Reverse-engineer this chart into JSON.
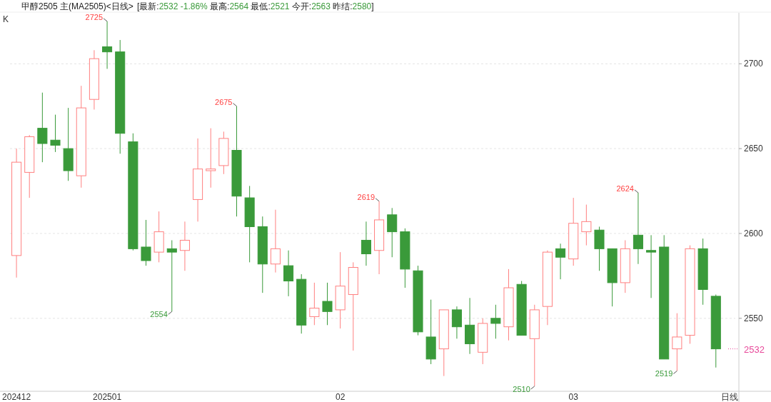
{
  "chart_data": {
    "type": "candlestick",
    "title": "甲醇2505 主(MA2505)<日线>",
    "subtitle": "[最新:2532 -1.86% 最高:2564 最低:2521 今开:2563 昨结:2580]",
    "annotations": [
      "K",
      "日线",
      "2725",
      "2675",
      "2619",
      "2624",
      "2554",
      "2510",
      "2519"
    ],
    "categories": [
      "202412",
      null,
      null,
      null,
      null,
      null,
      null,
      "202501",
      null,
      null,
      null,
      null,
      null,
      null,
      null,
      null,
      null,
      null,
      null,
      null,
      null,
      null,
      null,
      null,
      null,
      "02",
      null,
      null,
      null,
      null,
      null,
      null,
      null,
      null,
      null,
      null,
      null,
      null,
      null,
      null,
      null,
      null,
      null,
      "03",
      null,
      null,
      null,
      null,
      null,
      null,
      null,
      null,
      null,
      null,
      null
    ],
    "ohlc": [
      [
        2587,
        2650,
        2574,
        2642
      ],
      [
        2636,
        2658,
        2621,
        2657
      ],
      [
        2662,
        2683,
        2642,
        2653
      ],
      [
        2655,
        2670,
        2648,
        2652
      ],
      [
        2650,
        2674,
        2631,
        2637
      ],
      [
        2634,
        2687,
        2627,
        2674
      ],
      [
        2679,
        2708,
        2673,
        2703
      ],
      [
        2710,
        2725,
        2697,
        2707
      ],
      [
        2707,
        2714,
        2647,
        2659
      ],
      [
        2654,
        2659,
        2590,
        2591
      ],
      [
        2592,
        2608,
        2581,
        2584
      ],
      [
        2589,
        2613,
        2583,
        2601
      ],
      [
        2591,
        2596,
        2554,
        2589
      ],
      [
        2590,
        2607,
        2578,
        2596
      ],
      [
        2620,
        2656,
        2607,
        2638
      ],
      [
        2637,
        2662,
        2627,
        2638
      ],
      [
        2640,
        2660,
        2635,
        2656
      ],
      [
        2649,
        2675,
        2610,
        2622
      ],
      [
        2621,
        2628,
        2583,
        2604
      ],
      [
        2604,
        2610,
        2565,
        2582
      ],
      [
        2582,
        2614,
        2577,
        2591
      ],
      [
        2581,
        2590,
        2563,
        2572
      ],
      [
        2573,
        2576,
        2541,
        2546
      ],
      [
        2551,
        2571,
        2546,
        2556
      ],
      [
        2560,
        2571,
        2546,
        2554
      ],
      [
        2555,
        2589,
        2544,
        2569
      ],
      [
        2564,
        2583,
        2531,
        2580
      ],
      [
        2596,
        2607,
        2581,
        2588
      ],
      [
        2590,
        2619,
        2576,
        2608
      ],
      [
        2611,
        2615,
        2586,
        2601
      ],
      [
        2601,
        2603,
        2568,
        2579
      ],
      [
        2578,
        2581,
        2540,
        2542
      ],
      [
        2539,
        2561,
        2523,
        2526
      ],
      [
        2532,
        2555,
        2516,
        2555
      ],
      [
        2555,
        2557,
        2538,
        2545
      ],
      [
        2546,
        2562,
        2529,
        2535
      ],
      [
        2530,
        2550,
        2523,
        2547
      ],
      [
        2550,
        2558,
        2538,
        2547
      ],
      [
        2545,
        2579,
        2537,
        2568
      ],
      [
        2570,
        2572,
        2540,
        2540
      ],
      [
        2538,
        2558,
        2510,
        2555
      ],
      [
        2557,
        2590,
        2546,
        2589
      ],
      [
        2591,
        2594,
        2573,
        2586
      ],
      [
        2585,
        2621,
        2581,
        2606
      ],
      [
        2601,
        2617,
        2593,
        2607
      ],
      [
        2602,
        2604,
        2578,
        2591
      ],
      [
        2591,
        2591,
        2557,
        2571
      ],
      [
        2571,
        2596,
        2565,
        2591
      ],
      [
        2599,
        2624,
        2582,
        2591
      ],
      [
        2590,
        2599,
        2562,
        2589
      ],
      [
        2592,
        2599,
        2526,
        2526
      ],
      [
        2532,
        2553,
        2519,
        2539
      ],
      [
        2540,
        2593,
        2535,
        2591
      ],
      [
        2591,
        2597,
        2558,
        2567
      ],
      [
        2563,
        2564,
        2521,
        2532
      ]
    ],
    "colors": [
      "#ff8080",
      "#ff8080",
      "#3a9a3a",
      "#3a9a3a",
      "#3a9a3a",
      "#ff8080",
      "#ff8080",
      "#3a9a3a",
      "#3a9a3a",
      "#3a9a3a",
      "#3a9a3a",
      "#ff8080",
      "#3a9a3a",
      "#ff8080",
      "#ff8080",
      "#ff8080",
      "#ff8080",
      "#3a9a3a",
      "#3a9a3a",
      "#3a9a3a",
      "#ff8080",
      "#3a9a3a",
      "#3a9a3a",
      "#ff8080",
      "#3a9a3a",
      "#ff8080",
      "#ff8080",
      "#3a9a3a",
      "#ff8080",
      "#3a9a3a",
      "#3a9a3a",
      "#3a9a3a",
      "#3a9a3a",
      "#ff8080",
      "#3a9a3a",
      "#3a9a3a",
      "#ff8080",
      "#3a9a3a",
      "#ff8080",
      "#3a9a3a",
      "#ff8080",
      "#ff8080",
      "#3a9a3a",
      "#ff8080",
      "#ff8080",
      "#3a9a3a",
      "#3a9a3a",
      "#ff8080",
      "#3a9a3a",
      "#3a9a3a",
      "#3a9a3a",
      "#ff8080",
      "#ff8080",
      "#3a9a3a",
      "#3a9a3a"
    ],
    "ylim": [
      2507,
      2730
    ],
    "yticks": [
      2550,
      2600,
      2650,
      2700
    ],
    "grid": "y",
    "ref_lines": [
      {
        "axis": "y",
        "value": 2532,
        "label": "2532",
        "color": "#e8489a",
        "line_style": "dotted"
      }
    ]
  }
}
